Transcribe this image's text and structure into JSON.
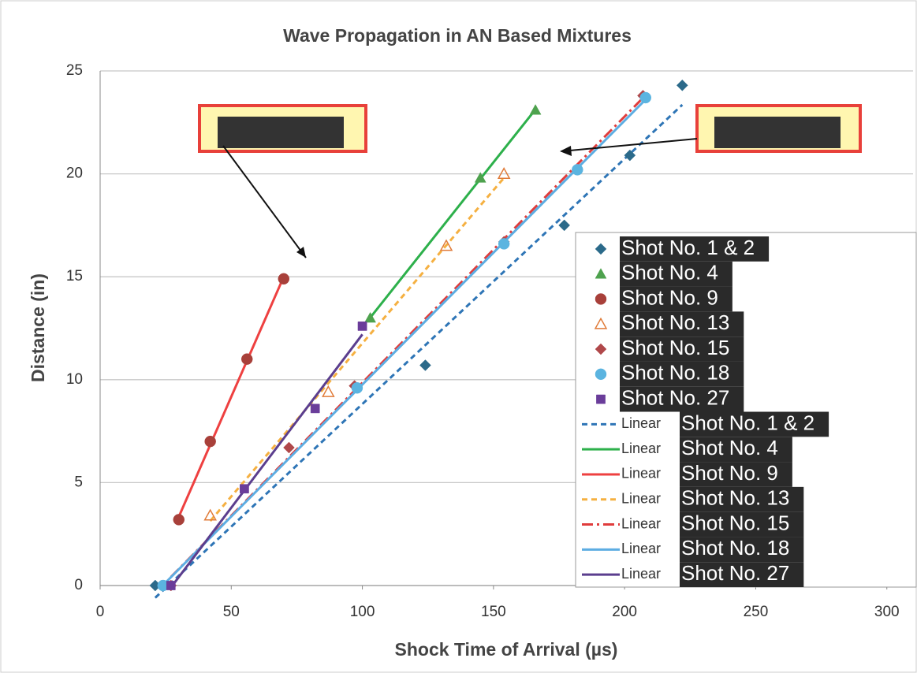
{
  "chart_data": {
    "type": "scatter",
    "title": "Wave Propagation in AN Based Mixtures",
    "x_label": "Shock Time of Arrival (µs)",
    "y_label": "Distance (in)",
    "xlim": [
      0,
      310
    ],
    "ylim": [
      0,
      25
    ],
    "xticks": [
      0,
      50,
      100,
      150,
      200,
      250,
      300
    ],
    "yticks": [
      0,
      5,
      10,
      15,
      20,
      25
    ],
    "grid": true,
    "trendline_label": "Linear",
    "legend": "right",
    "series": [
      {
        "name": "Shot No. 1 & 2",
        "color": "#2b6a8a",
        "marker": "diamond",
        "line_color": "#2e75b6",
        "line_style": "dashed",
        "x": [
          21,
          124,
          177,
          202,
          222
        ],
        "values": [
          0,
          10.7,
          17.5,
          20.9,
          24.3
        ]
      },
      {
        "name": "Shot No. 4",
        "color": "#4ea24e",
        "marker": "triangle",
        "line_color": "#2db04b",
        "line_style": "solid",
        "x": [
          103,
          145,
          166
        ],
        "values": [
          13,
          19.8,
          23.1
        ]
      },
      {
        "name": "Shot No. 9",
        "color": "#a8403a",
        "marker": "circle",
        "line_color": "#ee4040",
        "line_style": "solid",
        "x": [
          30,
          42,
          56,
          70
        ],
        "values": [
          3.2,
          7,
          11,
          14.9
        ]
      },
      {
        "name": "Shot No. 13",
        "color": "#e07b39",
        "marker": "open-triangle",
        "line_color": "#f5b041",
        "line_style": "dashed",
        "x": [
          42,
          87,
          132,
          154
        ],
        "values": [
          3.4,
          9.4,
          16.5,
          20
        ]
      },
      {
        "name": "Shot No. 15",
        "color": "#b0484a",
        "marker": "diamond",
        "line_color": "#e03c3c",
        "line_style": "dashdot",
        "x": [
          27,
          72,
          97,
          154,
          182,
          207
        ],
        "values": [
          0,
          6.7,
          9.7,
          16.7,
          20.2,
          23.8
        ]
      },
      {
        "name": "Shot No. 18",
        "color": "#5bb4e0",
        "marker": "circle",
        "line_color": "#5dade2",
        "line_style": "solid",
        "x": [
          24,
          98,
          154,
          182,
          208
        ],
        "values": [
          0,
          9.6,
          16.6,
          20.2,
          23.7
        ]
      },
      {
        "name": "Shot No. 27",
        "color": "#6a3d9a",
        "marker": "square",
        "line_color": "#5b3e8e",
        "line_style": "solid",
        "x": [
          27,
          55,
          82,
          100
        ],
        "values": [
          0,
          4.7,
          8.6,
          12.6
        ]
      }
    ]
  }
}
